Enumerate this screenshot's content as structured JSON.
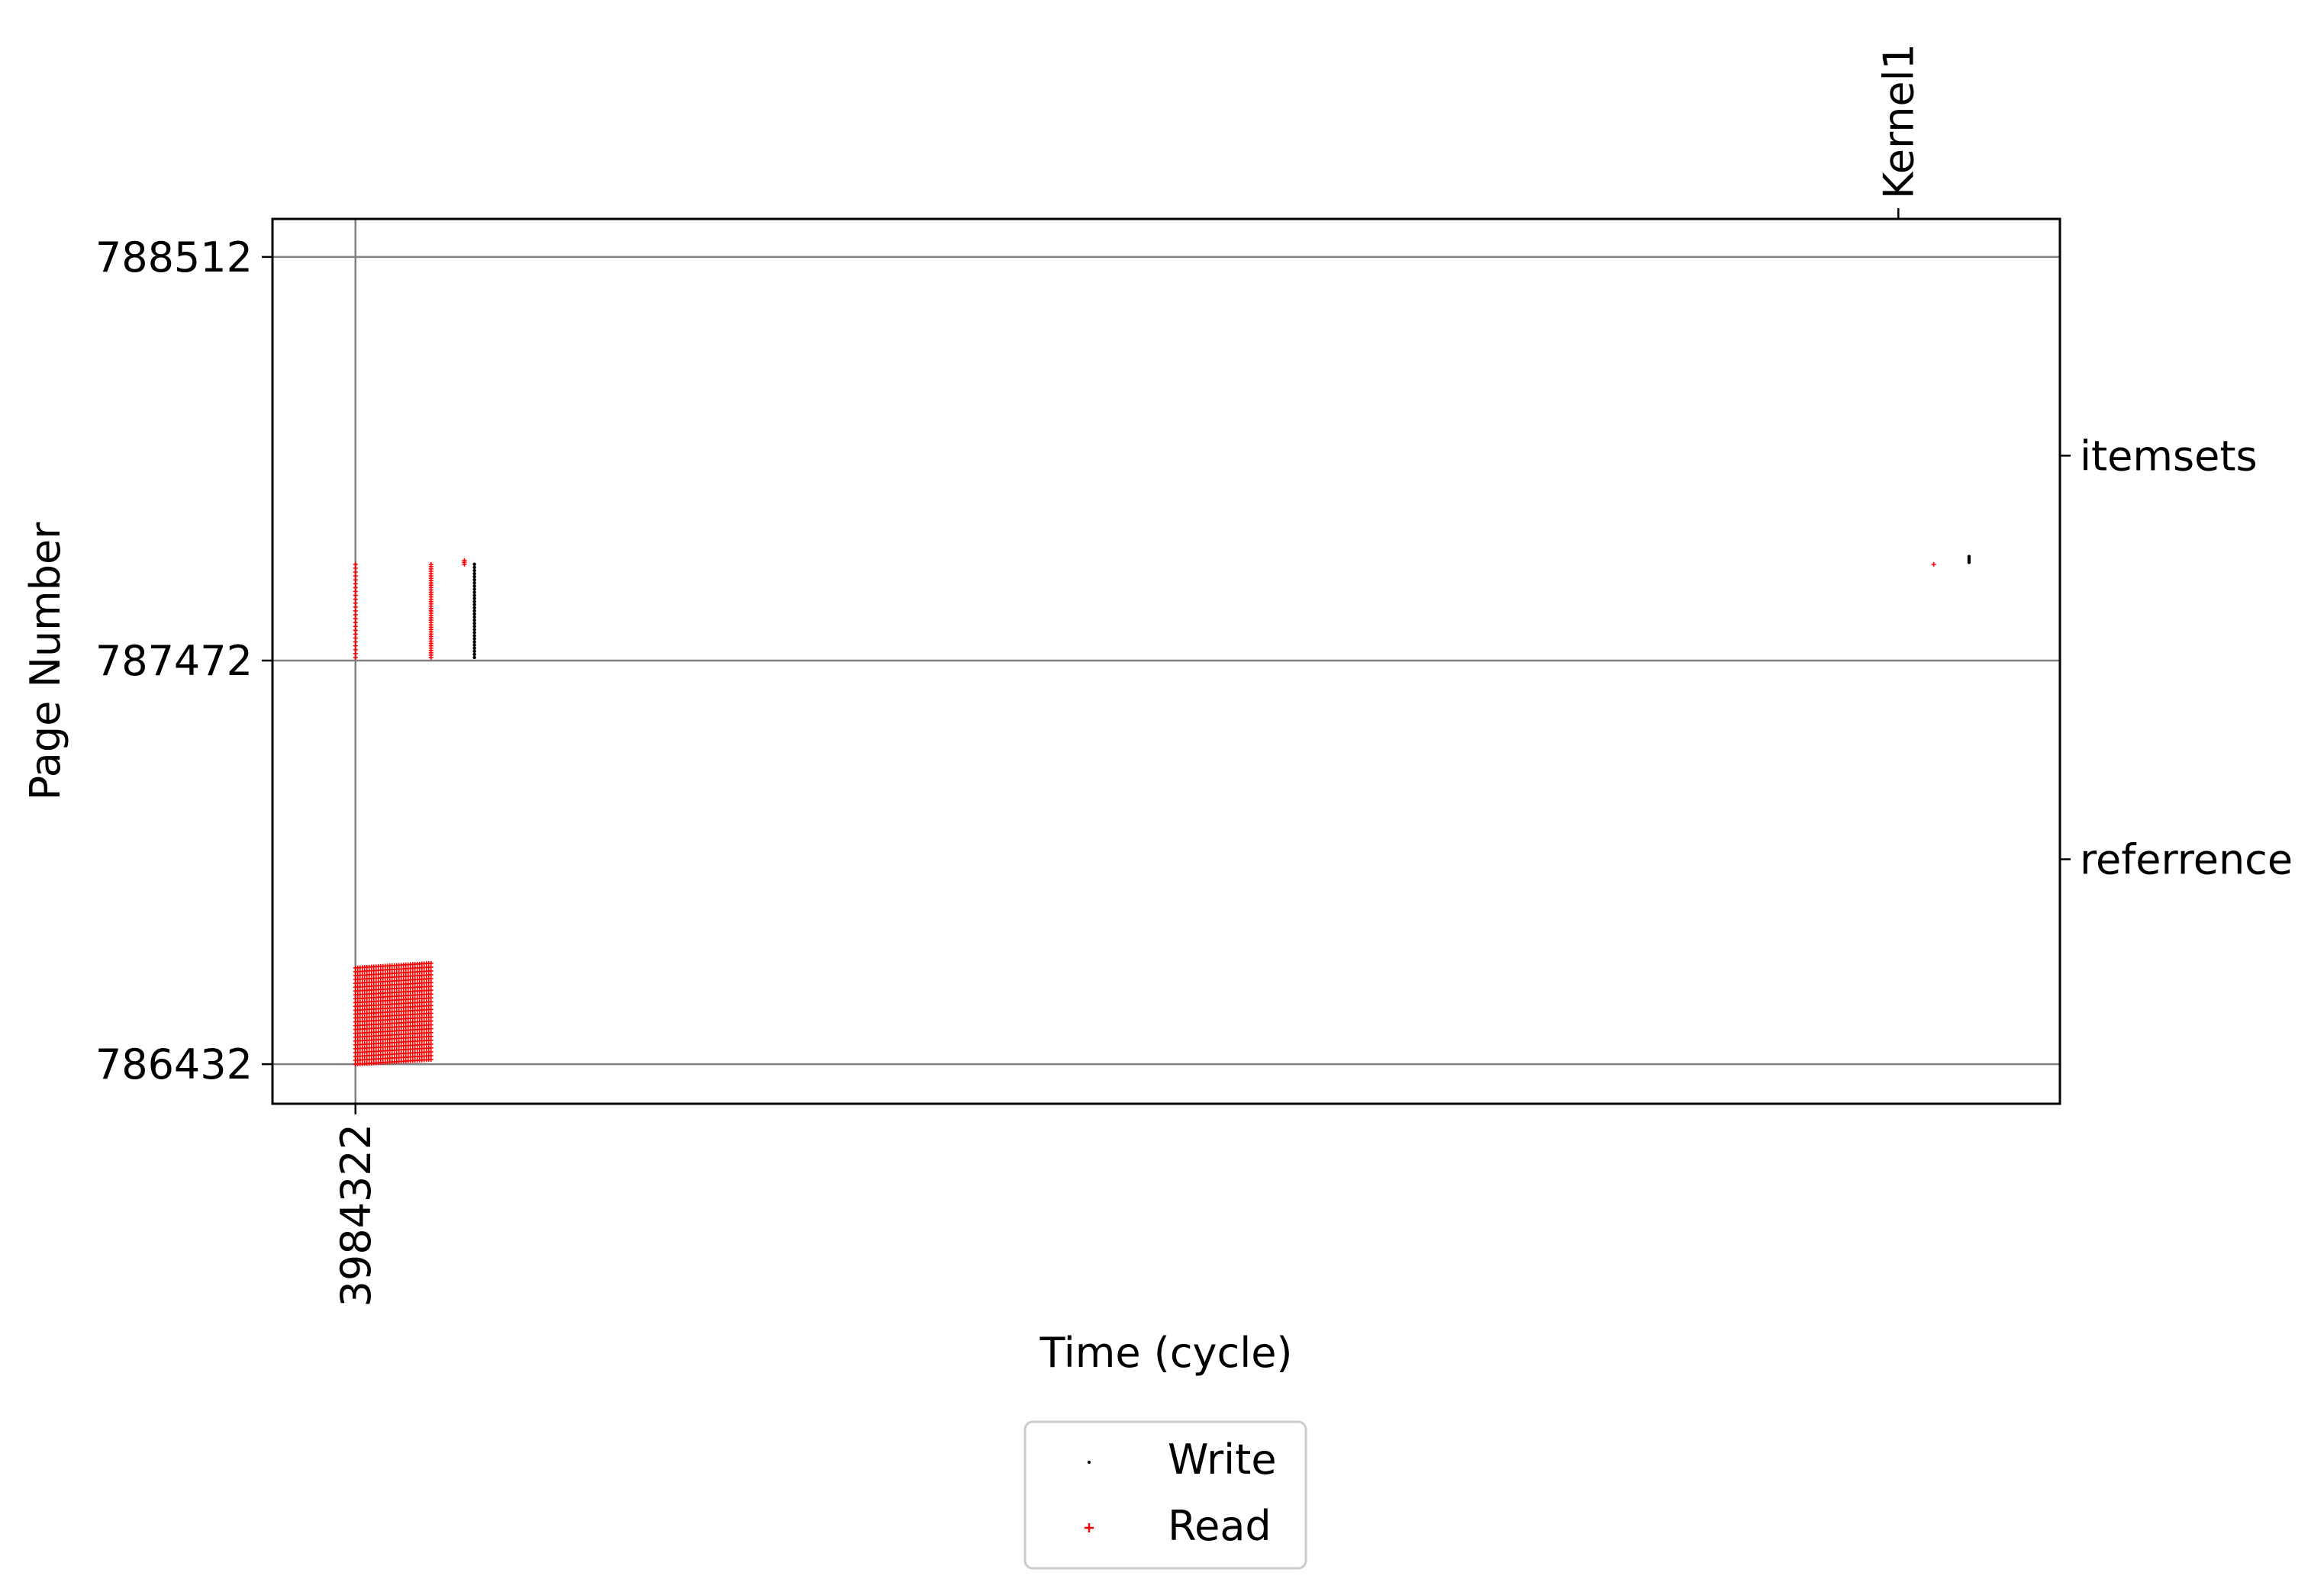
{
  "chart_data": {
    "type": "scatter",
    "title": "",
    "xlabel": "Time (cycle)",
    "ylabel": "Page Number",
    "x_ticks": [
      3984322
    ],
    "y_ticks": [
      786432,
      787472,
      788512
    ],
    "top_markers": [
      {
        "label": "Kernel1",
        "x": 3999600
      }
    ],
    "right_labels": [
      {
        "label": "itemsets",
        "y": 788000
      },
      {
        "label": "referrence",
        "y": 786960
      }
    ],
    "xlim": [
      3983500,
      4001200
    ],
    "ylim": [
      786330,
      788610
    ],
    "grid": true,
    "legend": {
      "position": "bottom-center",
      "entries": [
        "Write",
        "Read"
      ]
    },
    "series": [
      {
        "name": "Write",
        "color": "#000000",
        "marker": "point",
        "groups": [
          {
            "x": 3985500,
            "y_from": 787480,
            "y_to": 787720,
            "step": 8
          },
          {
            "x": 4000300,
            "y_from": 787725,
            "y_to": 787740,
            "step": 5
          }
        ]
      },
      {
        "name": "Read",
        "color": "#ff0000",
        "marker": "plus",
        "groups": [
          {
            "x": 3984322,
            "y_from": 787480,
            "y_to": 787720,
            "step": 10
          },
          {
            "x": 3985070,
            "y_from": 787480,
            "y_to": 787720,
            "step": 6
          },
          {
            "x": 3985400,
            "y_from": 787720,
            "y_to": 787730,
            "step": 5
          },
          {
            "x": 3999950,
            "y_from": 787720,
            "y_to": 787722,
            "step": 10
          }
        ],
        "block": {
          "x_from": 3984322,
          "x_to": 3985070,
          "x_count": 34,
          "y_from": 786432,
          "y_to": 786680,
          "y_count": 26
        }
      }
    ]
  }
}
